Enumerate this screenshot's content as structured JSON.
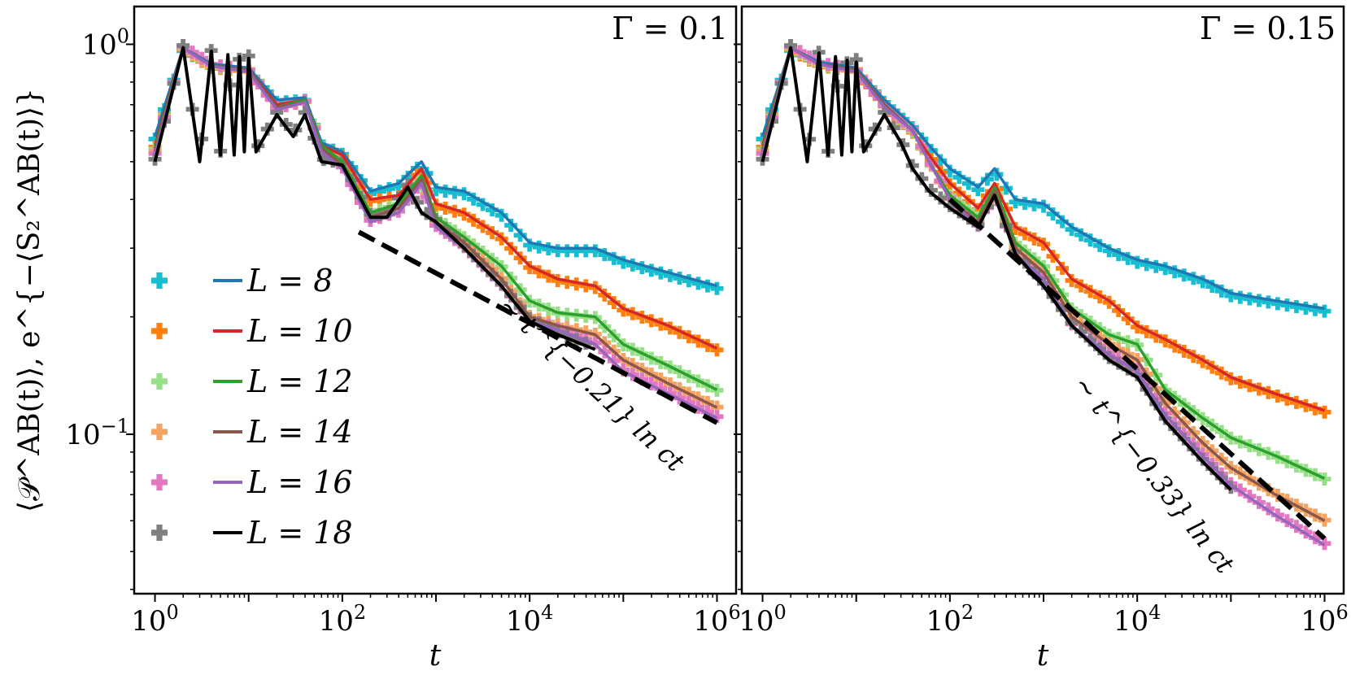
{
  "chart_data": {
    "type": "line",
    "ylabel": "⟨𝒫^AB(t)⟩, e^{−⟨S₂^AB(t)⟩}",
    "xlabel": "t",
    "xscale": "log",
    "yscale": "log",
    "xlim": [
      0.6,
      1600000
    ],
    "ylim": [
      0.039,
      1.25
    ],
    "x_ticks": [
      {
        "value": 1,
        "base": "10",
        "exp": "0"
      },
      {
        "value": 100,
        "base": "10",
        "exp": "2"
      },
      {
        "value": 10000,
        "base": "10",
        "exp": "4"
      },
      {
        "value": 1000000,
        "base": "10",
        "exp": "6"
      }
    ],
    "y_ticks": [
      {
        "value": 1,
        "base": "10",
        "exp": "0"
      },
      {
        "value": 0.1,
        "base": "10",
        "exp": "−1"
      }
    ],
    "legend": {
      "position": "lower-left, left panel",
      "entries": [
        {
          "label": "L = 8",
          "line_color": "#1f77b4",
          "marker_color": "#17becf"
        },
        {
          "label": "L = 10",
          "line_color": "#d62728",
          "marker_color": "#ff7f0e"
        },
        {
          "label": "L = 12",
          "line_color": "#2ca02c",
          "marker_color": "#98df8a"
        },
        {
          "label": "L = 14",
          "line_color": "#8c564b",
          "marker_color": "#f4a460"
        },
        {
          "label": "L = 16",
          "line_color": "#9467bd",
          "marker_color": "#e377c2"
        },
        {
          "label": "L = 18",
          "line_color": "#000000",
          "marker_color": "#7f7f7f"
        }
      ]
    },
    "panels": [
      {
        "title": "Γ = 0.1",
        "fit": {
          "label": "∼ t^{−0.21} ln ct",
          "x": [
            150,
            1000000
          ],
          "y": [
            0.33,
            0.107
          ]
        },
        "series": [
          {
            "name": "L = 8",
            "x": [
              1,
              2,
              4,
              10,
              20,
              40,
              60,
              100,
              200,
              400,
              700,
              1000,
              2000,
              5000,
              10000,
              20000,
              50000,
              100000,
              300000,
              1000000
            ],
            "y": [
              0.58,
              0.98,
              0.89,
              0.87,
              0.72,
              0.73,
              0.56,
              0.53,
              0.42,
              0.44,
              0.5,
              0.43,
              0.42,
              0.37,
              0.31,
              0.3,
              0.3,
              0.28,
              0.26,
              0.24
            ]
          },
          {
            "name": "L = 10",
            "x": [
              1,
              2,
              4,
              10,
              20,
              40,
              60,
              100,
              200,
              400,
              700,
              1000,
              2000,
              5000,
              10000,
              20000,
              50000,
              100000,
              300000,
              1000000
            ],
            "y": [
              0.55,
              0.98,
              0.88,
              0.86,
              0.7,
              0.72,
              0.55,
              0.52,
              0.4,
              0.41,
              0.48,
              0.39,
              0.37,
              0.32,
              0.27,
              0.25,
              0.24,
              0.21,
              0.19,
              0.166
            ]
          },
          {
            "name": "L = 12",
            "x": [
              1,
              2,
              4,
              10,
              20,
              40,
              60,
              100,
              200,
              400,
              700,
              1000,
              2000,
              5000,
              10000,
              20000,
              50000,
              100000,
              300000,
              1000000
            ],
            "y": [
              0.54,
              0.98,
              0.88,
              0.86,
              0.69,
              0.72,
              0.55,
              0.5,
              0.37,
              0.39,
              0.46,
              0.36,
              0.32,
              0.27,
              0.22,
              0.205,
              0.2,
              0.17,
              0.15,
              0.13
            ]
          },
          {
            "name": "L = 14",
            "x": [
              1,
              2,
              4,
              10,
              20,
              40,
              60,
              100,
              200,
              400,
              700,
              1000,
              2000,
              5000,
              10000,
              20000,
              50000,
              100000,
              300000,
              1000000
            ],
            "y": [
              0.53,
              0.98,
              0.88,
              0.86,
              0.69,
              0.71,
              0.54,
              0.49,
              0.36,
              0.38,
              0.45,
              0.35,
              0.31,
              0.25,
              0.2,
              0.19,
              0.18,
              0.155,
              0.135,
              0.117
            ]
          },
          {
            "name": "L = 16",
            "x": [
              1,
              2,
              4,
              10,
              20,
              40,
              60,
              100,
              200,
              400,
              700,
              1000,
              2000,
              5000,
              10000,
              20000,
              50000,
              100000,
              300000,
              1000000
            ],
            "y": [
              0.52,
              0.98,
              0.88,
              0.85,
              0.68,
              0.71,
              0.53,
              0.48,
              0.35,
              0.37,
              0.44,
              0.34,
              0.3,
              0.24,
              0.195,
              0.185,
              0.17,
              0.145,
              0.127,
              0.11
            ]
          },
          {
            "name": "L = 18",
            "x": [
              1,
              2,
              3,
              4,
              5,
              6,
              7,
              8,
              9,
              10,
              12,
              20,
              30,
              40,
              60,
              100,
              200,
              300,
              500,
              700,
              1000,
              2000,
              5000,
              10000,
              20000,
              50000
            ],
            "y": [
              0.5,
              0.98,
              0.5,
              0.96,
              0.52,
              0.94,
              0.52,
              0.93,
              0.53,
              0.92,
              0.53,
              0.66,
              0.58,
              0.66,
              0.5,
              0.49,
              0.36,
              0.36,
              0.43,
              0.37,
              0.35,
              0.3,
              0.24,
              0.195,
              0.18,
              0.165
            ]
          }
        ]
      },
      {
        "title": "Γ = 0.15",
        "fit": {
          "label": "∼ t^{−0.33} ln ct",
          "x": [
            100,
            1000000
          ],
          "y": [
            0.4,
            0.054
          ]
        },
        "series": [
          {
            "name": "L = 8",
            "x": [
              1,
              2,
              4,
              10,
              20,
              40,
              60,
              100,
              200,
              300,
              500,
              1000,
              2000,
              5000,
              10000,
              20000,
              50000,
              100000,
              300000,
              1000000
            ],
            "y": [
              0.58,
              0.98,
              0.9,
              0.87,
              0.72,
              0.62,
              0.55,
              0.48,
              0.43,
              0.48,
              0.4,
              0.39,
              0.34,
              0.3,
              0.28,
              0.27,
              0.25,
              0.23,
              0.22,
              0.21
            ]
          },
          {
            "name": "L = 10",
            "x": [
              1,
              2,
              4,
              10,
              20,
              40,
              60,
              100,
              200,
              300,
              500,
              1000,
              2000,
              5000,
              10000,
              20000,
              50000,
              100000,
              300000,
              1000000
            ],
            "y": [
              0.55,
              0.98,
              0.89,
              0.86,
              0.7,
              0.6,
              0.52,
              0.44,
              0.38,
              0.44,
              0.34,
              0.31,
              0.25,
              0.22,
              0.19,
              0.175,
              0.155,
              0.14,
              0.127,
              0.115
            ]
          },
          {
            "name": "L = 12",
            "x": [
              1,
              2,
              4,
              10,
              20,
              40,
              60,
              100,
              200,
              300,
              500,
              1000,
              2000,
              5000,
              10000,
              20000,
              50000,
              100000,
              300000,
              1000000
            ],
            "y": [
              0.54,
              0.98,
              0.89,
              0.86,
              0.7,
              0.6,
              0.5,
              0.41,
              0.36,
              0.43,
              0.31,
              0.27,
              0.21,
              0.18,
              0.17,
              0.13,
              0.11,
              0.098,
              0.088,
              0.077
            ]
          },
          {
            "name": "L = 14",
            "x": [
              1,
              2,
              4,
              10,
              20,
              40,
              60,
              100,
              200,
              300,
              500,
              1000,
              2000,
              5000,
              10000,
              20000,
              50000,
              100000,
              300000,
              1000000
            ],
            "y": [
              0.53,
              0.98,
              0.89,
              0.86,
              0.7,
              0.6,
              0.5,
              0.4,
              0.35,
              0.42,
              0.3,
              0.26,
              0.2,
              0.17,
              0.155,
              0.12,
              0.095,
              0.082,
              0.07,
              0.06
            ]
          },
          {
            "name": "L = 16",
            "x": [
              1,
              2,
              4,
              10,
              20,
              40,
              60,
              100,
              200,
              300,
              500,
              1000,
              2000,
              5000,
              10000,
              20000,
              50000,
              100000,
              300000,
              1000000
            ],
            "y": [
              0.52,
              0.98,
              0.89,
              0.85,
              0.69,
              0.6,
              0.5,
              0.4,
              0.34,
              0.41,
              0.29,
              0.25,
              0.19,
              0.16,
              0.145,
              0.112,
              0.088,
              0.074,
              0.062,
              0.052
            ]
          },
          {
            "name": "L = 18",
            "x": [
              1,
              2,
              3,
              4,
              5,
              6,
              7,
              8,
              9,
              10,
              12,
              20,
              30,
              40,
              60,
              100,
              200,
              300,
              500,
              1000,
              2000,
              5000,
              10000,
              20000,
              50000,
              100000
            ],
            "y": [
              0.5,
              0.98,
              0.5,
              0.95,
              0.52,
              0.93,
              0.52,
              0.91,
              0.53,
              0.9,
              0.53,
              0.66,
              0.56,
              0.48,
              0.42,
              0.38,
              0.34,
              0.41,
              0.29,
              0.24,
              0.19,
              0.155,
              0.14,
              0.108,
              0.085,
              0.072
            ]
          }
        ]
      }
    ]
  }
}
